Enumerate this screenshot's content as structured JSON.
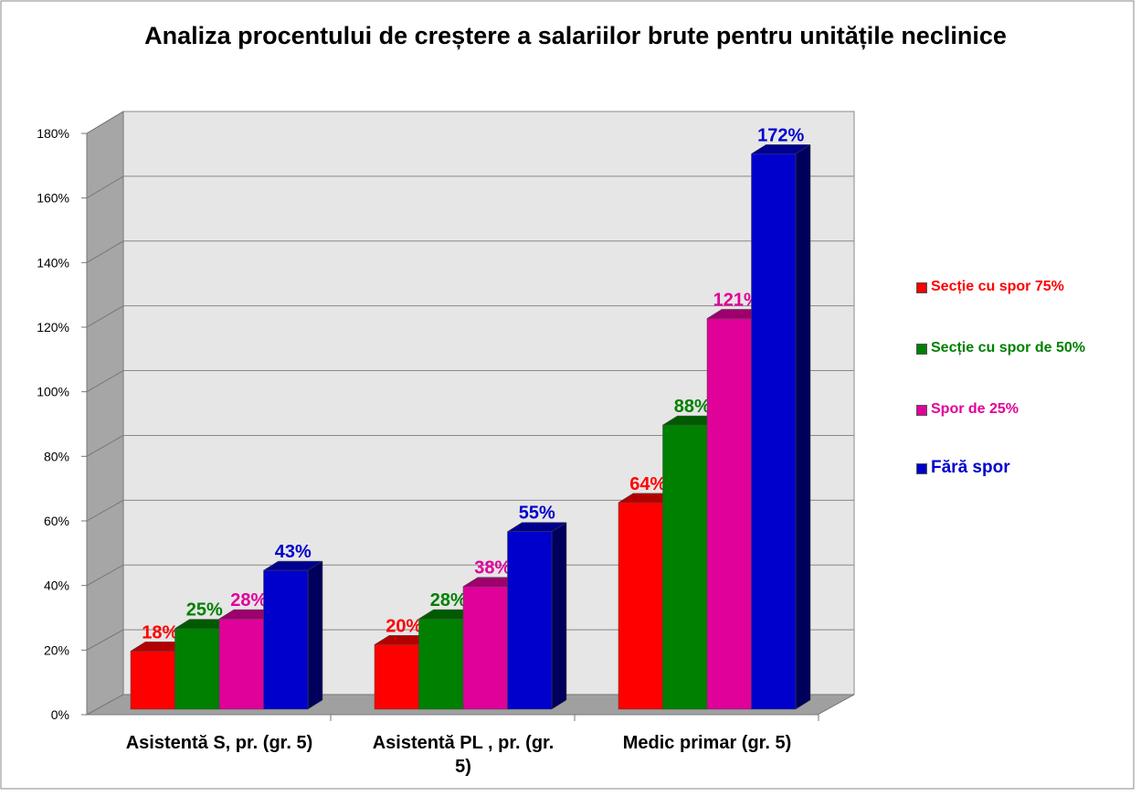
{
  "chart_data": {
    "type": "bar",
    "title": "Analiza procentului de creștere a salariilor brute pentru unitățile neclinice",
    "categories": [
      "Asistentă S, pr. (gr. 5)",
      "Asistentă PL , pr. (gr. 5)",
      "Medic primar (gr. 5)"
    ],
    "series": [
      {
        "name": "Secție cu spor 75%",
        "color": "#ff0000",
        "values": [
          18,
          20,
          64
        ],
        "value_labels": [
          "18%",
          "20%",
          "64%"
        ]
      },
      {
        "name": "Secție cu spor de 50%",
        "color": "#008000",
        "values": [
          25,
          28,
          88
        ],
        "value_labels": [
          "25%",
          "28%",
          "88%"
        ]
      },
      {
        "name": "Spor de 25%",
        "color": "#e0009a",
        "values": [
          28,
          38,
          121
        ],
        "value_labels": [
          "28%",
          "38%",
          "121%"
        ]
      },
      {
        "name": "Fără spor",
        "color": "#0000cc",
        "values": [
          43,
          55,
          172
        ],
        "value_labels": [
          "43%",
          "55%",
          "172%"
        ]
      }
    ],
    "ylim": [
      0,
      180
    ],
    "yticks": [
      {
        "value": 0,
        "label": "0%"
      },
      {
        "value": 20,
        "label": "20%"
      },
      {
        "value": 40,
        "label": "40%"
      },
      {
        "value": 60,
        "label": "60%"
      },
      {
        "value": 80,
        "label": "80%"
      },
      {
        "value": 100,
        "label": "100%"
      },
      {
        "value": 120,
        "label": "120%"
      },
      {
        "value": 140,
        "label": "140%"
      },
      {
        "value": 160,
        "label": "160%"
      },
      {
        "value": 180,
        "label": "180%"
      }
    ],
    "grid": true,
    "legend": "right"
  }
}
